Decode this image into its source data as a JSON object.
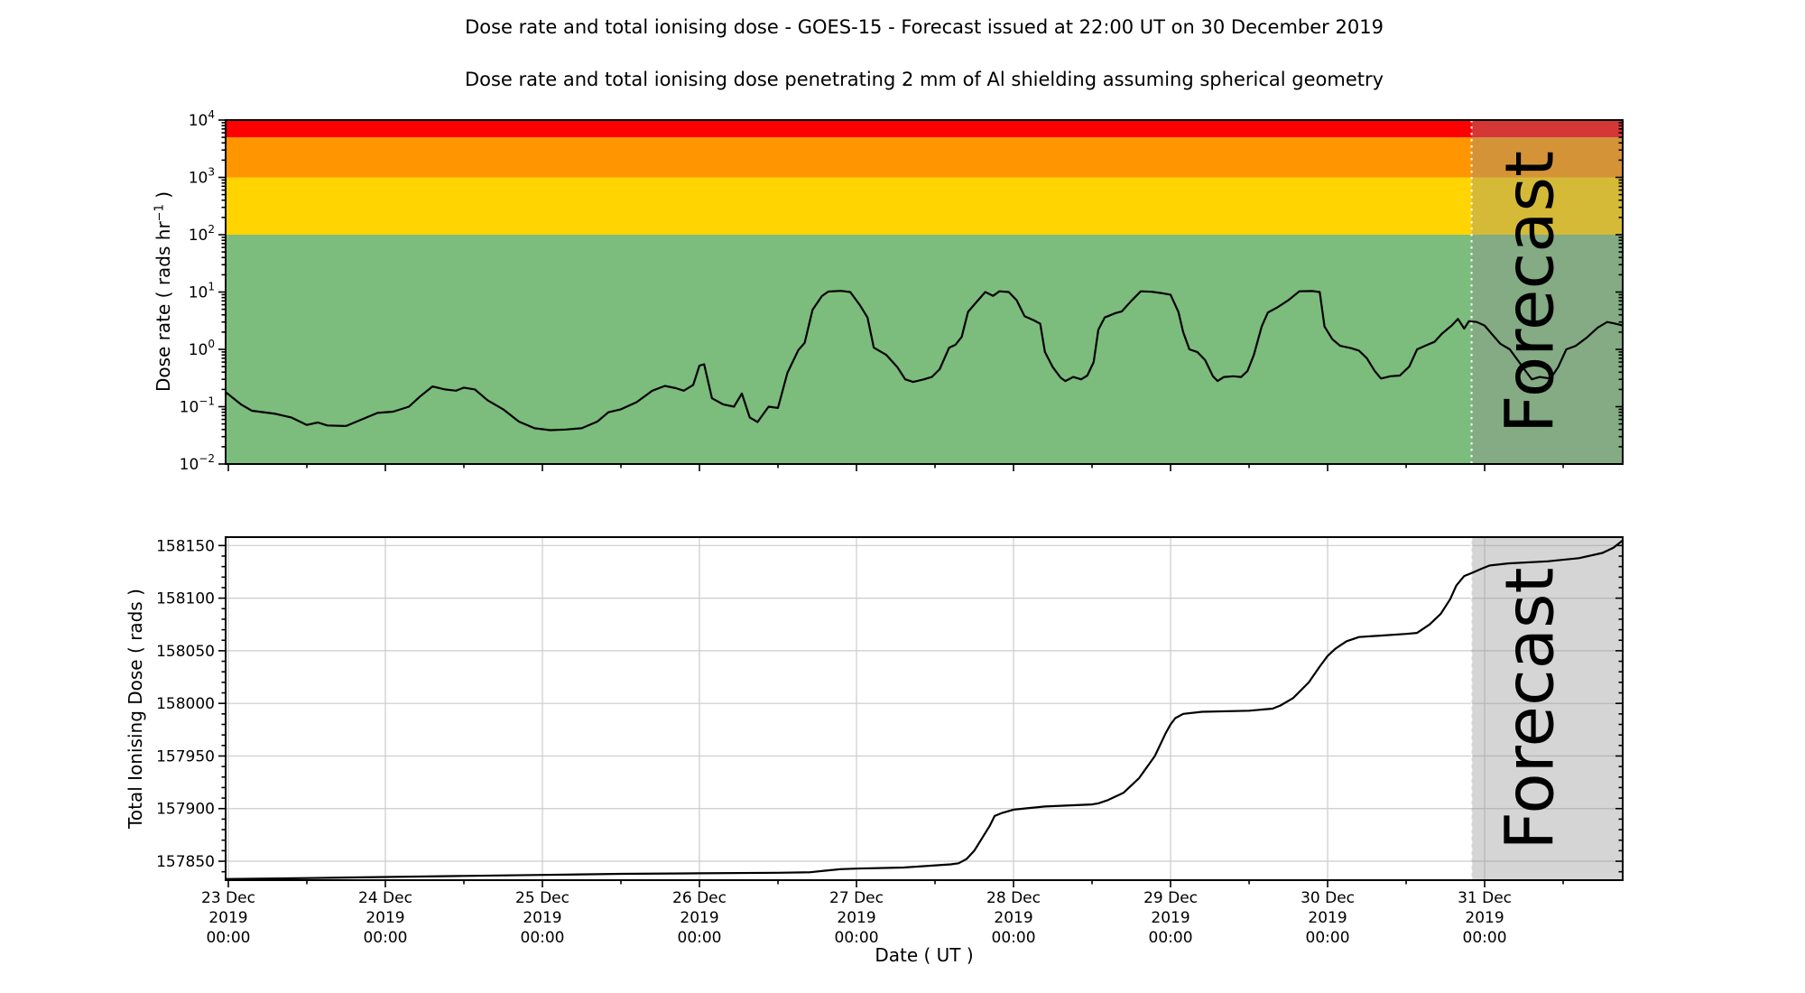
{
  "figure": {
    "title": "Dose rate and total ionising dose - GOES-15 - Forecast issued at 22:00 UT on 30 December 2019",
    "subtitle": "Dose rate and total ionising dose penetrating 2 mm of Al shielding assuming spherical geometry",
    "xlabel": "Date ( UT )"
  },
  "forecast": {
    "label": "Forecast",
    "start_days": 7.9167
  },
  "colors": {
    "line": "#000000",
    "grid": "#cccccc",
    "forecast_overlay": "rgba(145,145,145,0.38)",
    "forecast_text": "rgba(64,64,64,0.38)",
    "forecast_divider": "#ffffff",
    "band_green": "#7cbc7c",
    "band_yellow": "#ffd400",
    "band_orange": "#ff9500",
    "band_red": "#ff0000"
  },
  "x_axis": {
    "xlim_days": [
      -0.0172,
      8.879
    ],
    "tick_positions_days": [
      0,
      1,
      2,
      3,
      4,
      5,
      6,
      7,
      8
    ],
    "minor_tick_positions_days": [
      0.5,
      1.5,
      2.5,
      3.5,
      4.5,
      5.5,
      6.5,
      7.5,
      8.5
    ],
    "tick_labels": [
      [
        "23 Dec",
        "2019",
        "00:00"
      ],
      [
        "24 Dec",
        "2019",
        "00:00"
      ],
      [
        "25 Dec",
        "2019",
        "00:00"
      ],
      [
        "26 Dec",
        "2019",
        "00:00"
      ],
      [
        "27 Dec",
        "2019",
        "00:00"
      ],
      [
        "28 Dec",
        "2019",
        "00:00"
      ],
      [
        "29 Dec",
        "2019",
        "00:00"
      ],
      [
        "30 Dec",
        "2019",
        "00:00"
      ],
      [
        "31 Dec",
        "2019",
        "00:00"
      ]
    ]
  },
  "chart_data": [
    {
      "id": "dose_rate",
      "type": "line",
      "yscale": "log",
      "ylabel_prefix": "Dose rate ( rads hr",
      "ylabel_sup": "−1",
      "ylabel_suffix": " )",
      "ylim": [
        0.01,
        10000
      ],
      "ytick_exponents": [
        4,
        3,
        2,
        1,
        0,
        -1,
        -2
      ],
      "bands": [
        {
          "name": "green",
          "from": 0.01,
          "to": 100,
          "color_key": "band_green"
        },
        {
          "name": "yellow",
          "from": 100,
          "to": 1000,
          "color_key": "band_yellow"
        },
        {
          "name": "orange",
          "from": 1000,
          "to": 5000,
          "color_key": "band_orange"
        },
        {
          "name": "red",
          "from": 5000,
          "to": 10000,
          "color_key": "band_red"
        }
      ],
      "series": [
        {
          "name": "dose_rate",
          "points": [
            [
              -0.02,
              0.18
            ],
            [
              0,
              0.165
            ],
            [
              0.08,
              0.11
            ],
            [
              0.15,
              0.085
            ],
            [
              0.3,
              0.075
            ],
            [
              0.4,
              0.065
            ],
            [
              0.5,
              0.048
            ],
            [
              0.57,
              0.053
            ],
            [
              0.63,
              0.047
            ],
            [
              0.75,
              0.046
            ],
            [
              0.85,
              0.06
            ],
            [
              0.95,
              0.078
            ],
            [
              1.05,
              0.082
            ],
            [
              1.15,
              0.1
            ],
            [
              1.22,
              0.15
            ],
            [
              1.3,
              0.225
            ],
            [
              1.38,
              0.2
            ],
            [
              1.45,
              0.19
            ],
            [
              1.5,
              0.215
            ],
            [
              1.57,
              0.2
            ],
            [
              1.65,
              0.13
            ],
            [
              1.75,
              0.09
            ],
            [
              1.85,
              0.055
            ],
            [
              1.95,
              0.042
            ],
            [
              2.05,
              0.039
            ],
            [
              2.15,
              0.04
            ],
            [
              2.25,
              0.042
            ],
            [
              2.35,
              0.055
            ],
            [
              2.42,
              0.08
            ],
            [
              2.5,
              0.09
            ],
            [
              2.6,
              0.12
            ],
            [
              2.7,
              0.19
            ],
            [
              2.78,
              0.23
            ],
            [
              2.85,
              0.21
            ],
            [
              2.9,
              0.19
            ],
            [
              2.96,
              0.24
            ],
            [
              3.0,
              0.52
            ],
            [
              3.03,
              0.55
            ],
            [
              3.08,
              0.14
            ],
            [
              3.15,
              0.11
            ],
            [
              3.22,
              0.1
            ],
            [
              3.27,
              0.17
            ],
            [
              3.32,
              0.065
            ],
            [
              3.37,
              0.054
            ],
            [
              3.44,
              0.1
            ],
            [
              3.5,
              0.095
            ],
            [
              3.56,
              0.39
            ],
            [
              3.63,
              0.97
            ],
            [
              3.67,
              1.3
            ],
            [
              3.72,
              4.9
            ],
            [
              3.78,
              8.5
            ],
            [
              3.82,
              10.2
            ],
            [
              3.9,
              10.5
            ],
            [
              3.96,
              10
            ],
            [
              4.02,
              6
            ],
            [
              4.07,
              3.6
            ],
            [
              4.11,
              1.07
            ],
            [
              4.19,
              0.8
            ],
            [
              4.26,
              0.49
            ],
            [
              4.31,
              0.3
            ],
            [
              4.36,
              0.27
            ],
            [
              4.43,
              0.3
            ],
            [
              4.48,
              0.33
            ],
            [
              4.53,
              0.45
            ],
            [
              4.59,
              1.07
            ],
            [
              4.63,
              1.2
            ],
            [
              4.67,
              1.65
            ],
            [
              4.71,
              4.5
            ],
            [
              4.76,
              6.5
            ],
            [
              4.82,
              10
            ],
            [
              4.87,
              8.6
            ],
            [
              4.91,
              10.3
            ],
            [
              4.97,
              10
            ],
            [
              5.02,
              7.2
            ],
            [
              5.07,
              3.8
            ],
            [
              5.13,
              3.2
            ],
            [
              5.17,
              2.8
            ],
            [
              5.2,
              0.9
            ],
            [
              5.25,
              0.49
            ],
            [
              5.3,
              0.32
            ],
            [
              5.33,
              0.28
            ],
            [
              5.38,
              0.33
            ],
            [
              5.43,
              0.3
            ],
            [
              5.47,
              0.35
            ],
            [
              5.51,
              0.6
            ],
            [
              5.54,
              2.2
            ],
            [
              5.58,
              3.6
            ],
            [
              5.65,
              4.3
            ],
            [
              5.69,
              4.6
            ],
            [
              5.75,
              7
            ],
            [
              5.81,
              10.3
            ],
            [
              5.88,
              10.1
            ],
            [
              5.95,
              9.5
            ],
            [
              6.0,
              9
            ],
            [
              6.05,
              4.5
            ],
            [
              6.08,
              2
            ],
            [
              6.12,
              1.0
            ],
            [
              6.17,
              0.9
            ],
            [
              6.22,
              0.65
            ],
            [
              6.27,
              0.34
            ],
            [
              6.3,
              0.28
            ],
            [
              6.34,
              0.33
            ],
            [
              6.4,
              0.34
            ],
            [
              6.45,
              0.33
            ],
            [
              6.49,
              0.42
            ],
            [
              6.53,
              0.8
            ],
            [
              6.58,
              2.5
            ],
            [
              6.62,
              4.4
            ],
            [
              6.68,
              5.4
            ],
            [
              6.75,
              7.2
            ],
            [
              6.82,
              10.3
            ],
            [
              6.9,
              10.4
            ],
            [
              6.95,
              10
            ],
            [
              6.98,
              2.5
            ],
            [
              7.03,
              1.5
            ],
            [
              7.08,
              1.15
            ],
            [
              7.15,
              1.05
            ],
            [
              7.2,
              0.95
            ],
            [
              7.25,
              0.7
            ],
            [
              7.3,
              0.42
            ],
            [
              7.34,
              0.31
            ],
            [
              7.4,
              0.34
            ],
            [
              7.46,
              0.35
            ],
            [
              7.52,
              0.5
            ],
            [
              7.57,
              1.0
            ],
            [
              7.62,
              1.15
            ],
            [
              7.68,
              1.35
            ],
            [
              7.73,
              1.9
            ],
            [
              7.79,
              2.6
            ],
            [
              7.83,
              3.4
            ],
            [
              7.87,
              2.3
            ],
            [
              7.9,
              3.1
            ],
            [
              7.95,
              3.0
            ],
            [
              8.0,
              2.6
            ],
            [
              8.05,
              1.8
            ],
            [
              8.1,
              1.25
            ],
            [
              8.16,
              1.0
            ],
            [
              8.21,
              0.65
            ],
            [
              8.26,
              0.42
            ],
            [
              8.3,
              0.3
            ],
            [
              8.35,
              0.33
            ],
            [
              8.42,
              0.31
            ],
            [
              8.47,
              0.5
            ],
            [
              8.52,
              1.0
            ],
            [
              8.58,
              1.15
            ],
            [
              8.65,
              1.6
            ],
            [
              8.72,
              2.4
            ],
            [
              8.78,
              3.0
            ],
            [
              8.82,
              2.85
            ],
            [
              8.88,
              2.6
            ]
          ]
        }
      ]
    },
    {
      "id": "total_dose",
      "type": "line",
      "yscale": "linear",
      "ylabel": "Total Ionising Dose ( rads )",
      "ylim": [
        157832,
        158158
      ],
      "yticks": [
        158150,
        158100,
        158050,
        158000,
        157950,
        157900,
        157850
      ],
      "grid": true,
      "series": [
        {
          "name": "total_ionising_dose",
          "points": [
            [
              -0.02,
              157833
            ],
            [
              0.5,
              157834
            ],
            [
              1,
              157835
            ],
            [
              1.5,
              157836
            ],
            [
              2,
              157837
            ],
            [
              2.5,
              157838
            ],
            [
              3,
              157838.5
            ],
            [
              3.5,
              157839
            ],
            [
              3.7,
              157839.5
            ],
            [
              3.8,
              157841
            ],
            [
              3.9,
              157842.5
            ],
            [
              4.0,
              157843
            ],
            [
              4.3,
              157844
            ],
            [
              4.6,
              157847
            ],
            [
              4.65,
              157848
            ],
            [
              4.7,
              157852
            ],
            [
              4.75,
              157860
            ],
            [
              4.8,
              157872
            ],
            [
              4.85,
              157884
            ],
            [
              4.88,
              157893
            ],
            [
              4.93,
              157896
            ],
            [
              5.0,
              157899
            ],
            [
              5.2,
              157902
            ],
            [
              5.5,
              157904
            ],
            [
              5.54,
              157905
            ],
            [
              5.6,
              157908
            ],
            [
              5.7,
              157915
            ],
            [
              5.8,
              157929
            ],
            [
              5.9,
              157950
            ],
            [
              5.97,
              157972
            ],
            [
              6.0,
              157980
            ],
            [
              6.03,
              157986
            ],
            [
              6.08,
              157990
            ],
            [
              6.2,
              157992
            ],
            [
              6.5,
              157993
            ],
            [
              6.65,
              157995
            ],
            [
              6.7,
              157998
            ],
            [
              6.78,
              158005
            ],
            [
              6.88,
              158020
            ],
            [
              6.95,
              158035
            ],
            [
              7.0,
              158045
            ],
            [
              7.05,
              158052
            ],
            [
              7.07,
              158054
            ],
            [
              7.12,
              158059
            ],
            [
              7.2,
              158063
            ],
            [
              7.5,
              158066
            ],
            [
              7.57,
              158067
            ],
            [
              7.6,
              158070
            ],
            [
              7.65,
              158075
            ],
            [
              7.72,
              158085
            ],
            [
              7.78,
              158099
            ],
            [
              7.82,
              158112
            ],
            [
              7.87,
              158121
            ],
            [
              7.92,
              158124
            ],
            [
              7.98,
              158128
            ],
            [
              8.03,
              158131
            ],
            [
              8.15,
              158133
            ],
            [
              8.4,
              158135
            ],
            [
              8.6,
              158138
            ],
            [
              8.75,
              158143
            ],
            [
              8.82,
              158148
            ],
            [
              8.88,
              158155
            ]
          ]
        }
      ]
    }
  ]
}
